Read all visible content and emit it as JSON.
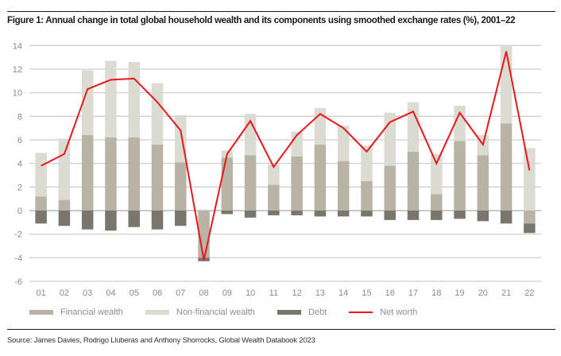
{
  "figure": {
    "title": "Figure 1: Annual change in total global household wealth and its components using smoothed exchange rates (%), 2001–22",
    "source": "Source: James Davies, Rodrigo Lluberas and Anthony Shorrocks, Global Wealth Databook 2023"
  },
  "legend": [
    {
      "key": "financial",
      "label": "Financial wealth",
      "color": "#b8b3a4",
      "kind": "bar"
    },
    {
      "key": "nonfinancial",
      "label": "Non-financial wealth",
      "color": "#dcdbd2",
      "kind": "bar"
    },
    {
      "key": "debt",
      "label": "Debt",
      "color": "#7a766d",
      "kind": "bar"
    },
    {
      "key": "networth",
      "label": "Net worth",
      "color": "#e8171b",
      "kind": "line"
    }
  ],
  "chart_data": {
    "type": "bar",
    "subtype": "stacked bar with line overlay",
    "title": "Figure 1: Annual change in total global household wealth and its components using smoothed exchange rates (%), 2001–22",
    "xlabel": "",
    "ylabel": "",
    "ylim": [
      -6,
      14
    ],
    "yticks": [
      14,
      12,
      10,
      8,
      6,
      4,
      2,
      0,
      -2,
      -4,
      -6
    ],
    "grid": true,
    "legend_position": "bottom",
    "categories": [
      "01",
      "02",
      "03",
      "04",
      "05",
      "06",
      "07",
      "08",
      "09",
      "10",
      "11",
      "12",
      "13",
      "14",
      "15",
      "16",
      "17",
      "18",
      "19",
      "20",
      "21",
      "22"
    ],
    "series": [
      {
        "name": "Financial wealth",
        "type": "bar",
        "color": "#b8b3a4",
        "values": [
          1.2,
          0.9,
          6.4,
          6.2,
          6.2,
          5.6,
          4.1,
          -4.0,
          4.5,
          4.7,
          2.2,
          4.6,
          5.6,
          4.2,
          2.5,
          3.8,
          5.0,
          1.4,
          5.9,
          4.7,
          7.4,
          -1.1
        ]
      },
      {
        "name": "Non-financial wealth",
        "type": "bar",
        "color": "#dcdbd2",
        "values": [
          3.7,
          5.2,
          5.5,
          6.5,
          6.4,
          5.2,
          4.0,
          0.1,
          0.6,
          3.5,
          1.7,
          2.1,
          3.1,
          3.0,
          3.0,
          4.5,
          4.2,
          3.4,
          3.0,
          1.7,
          6.6,
          5.3
        ]
      },
      {
        "name": "Debt",
        "type": "bar",
        "color": "#7a766d",
        "values": [
          -1.1,
          -1.3,
          -1.6,
          -1.7,
          -1.4,
          -1.6,
          -1.3,
          -0.3,
          -0.3,
          -0.6,
          -0.4,
          -0.4,
          -0.5,
          -0.5,
          -0.5,
          -0.8,
          -0.8,
          -0.8,
          -0.7,
          -0.9,
          -1.1,
          -0.8
        ]
      },
      {
        "name": "Net worth",
        "type": "line",
        "color": "#e8171b",
        "values": [
          3.8,
          4.8,
          10.3,
          11.1,
          11.2,
          9.2,
          6.8,
          -4.2,
          4.8,
          7.6,
          3.7,
          6.4,
          8.2,
          7.0,
          5.0,
          7.5,
          8.4,
          4.0,
          8.3,
          5.6,
          13.5,
          3.4
        ]
      }
    ]
  }
}
